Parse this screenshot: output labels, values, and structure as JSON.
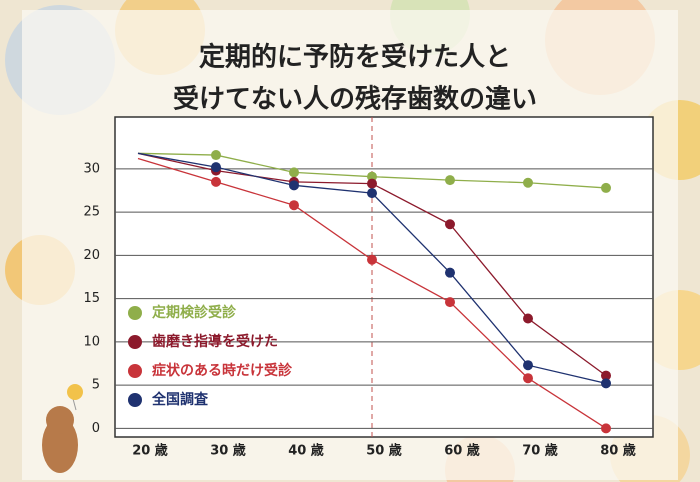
{
  "chart_data": {
    "type": "line",
    "title": [
      "定期的に予防を受けた人と",
      "受けてない人の残存歯数の違い"
    ],
    "categories": [
      "20 歳",
      "30 歳",
      "40 歳",
      "50 歳",
      "60 歳",
      "70 歳",
      "80 歳"
    ],
    "series": [
      {
        "name": "定期検診受診",
        "color": "#8fae4a",
        "values": [
          31.8,
          31.6,
          29.6,
          29.1,
          28.7,
          28.4,
          27.8
        ]
      },
      {
        "name": "歯磨き指導を受けた",
        "color": "#8c1a2c",
        "values": [
          31.8,
          29.8,
          28.5,
          28.3,
          23.6,
          12.7,
          6.1
        ]
      },
      {
        "name": "症状のある時だけ受診",
        "color": "#c8343a",
        "values": [
          31.2,
          28.5,
          25.8,
          19.5,
          14.6,
          5.8,
          0
        ]
      },
      {
        "name": "全国調査",
        "color": "#1f3270",
        "values": [
          31.8,
          30.2,
          28.1,
          27.2,
          18.0,
          7.3,
          5.2
        ]
      }
    ],
    "ylim": [
      -1,
      36
    ],
    "yticks": [
      0,
      5,
      10,
      15,
      20,
      25,
      30
    ],
    "grid": true
  }
}
